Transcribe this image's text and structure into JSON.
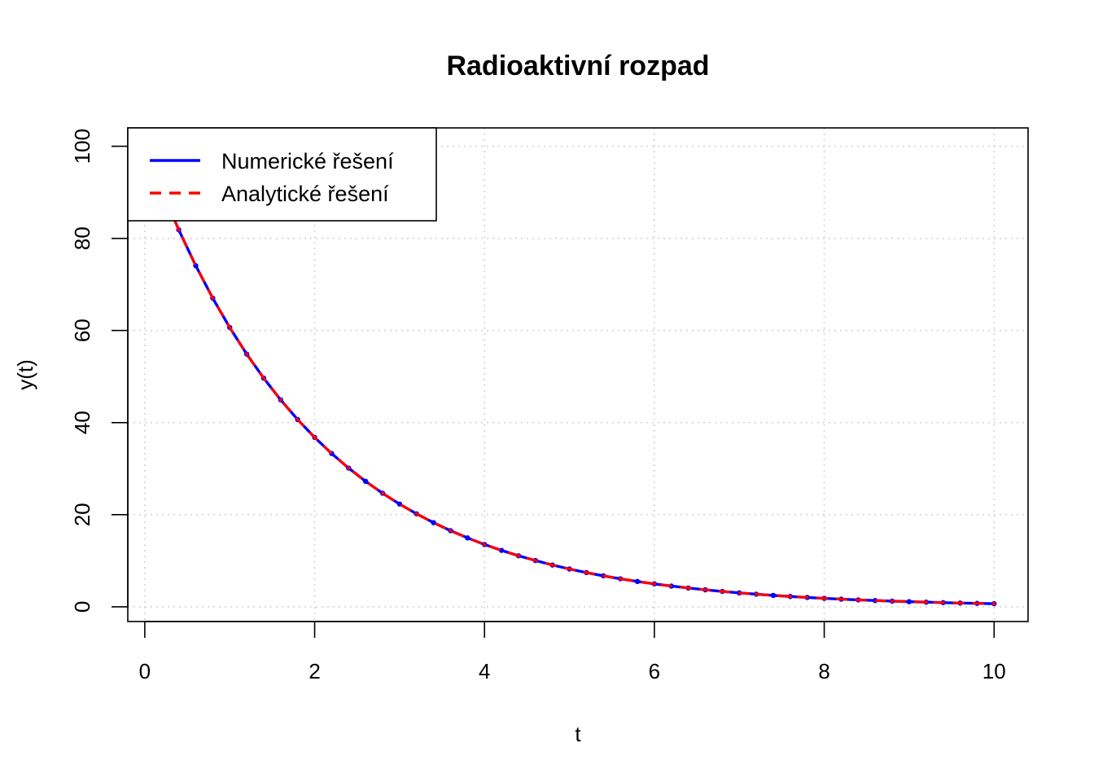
{
  "chart_data": {
    "type": "line",
    "title": "Radioaktivní rozpad",
    "xlabel": "t",
    "ylabel": "y(t)",
    "xlim": [
      -0.2,
      10.4
    ],
    "ylim": [
      -3.2,
      104
    ],
    "xticks": [
      0,
      2,
      4,
      6,
      8,
      10
    ],
    "yticks": [
      0,
      20,
      40,
      60,
      80,
      100
    ],
    "grid": true,
    "legend_position": "top-left",
    "series": [
      {
        "name": "Numerické řešení",
        "color": "#0000ff",
        "style": "solid-with-points",
        "x": [
          0,
          0.2,
          0.4,
          0.6,
          0.8,
          1.0,
          1.2,
          1.4,
          1.6,
          1.8,
          2.0,
          2.2,
          2.4,
          2.6,
          2.8,
          3.0,
          3.2,
          3.4,
          3.6,
          3.8,
          4.0,
          4.2,
          4.4,
          4.6,
          4.8,
          5.0,
          5.2,
          5.4,
          5.6,
          5.8,
          6.0,
          6.2,
          6.4,
          6.6,
          6.8,
          7.0,
          7.2,
          7.4,
          7.6,
          7.8,
          8.0,
          8.2,
          8.4,
          8.6,
          8.8,
          9.0,
          9.2,
          9.4,
          9.6,
          9.8,
          10.0
        ],
        "y": [
          100,
          90.48,
          81.87,
          74.08,
          67.03,
          60.65,
          54.88,
          49.66,
          44.93,
          40.66,
          36.79,
          33.29,
          30.12,
          27.25,
          24.66,
          22.31,
          20.19,
          18.27,
          16.53,
          14.96,
          13.53,
          12.25,
          11.08,
          10.05,
          9.07,
          8.21,
          7.43,
          6.72,
          6.08,
          5.5,
          4.98,
          4.5,
          4.08,
          3.69,
          3.34,
          3.02,
          2.73,
          2.47,
          2.24,
          2.03,
          1.83,
          1.66,
          1.5,
          1.36,
          1.23,
          1.11,
          1.01,
          0.91,
          0.82,
          0.74,
          0.67
        ]
      },
      {
        "name": "Analytické řešení",
        "color": "#ff0000",
        "style": "dashed",
        "x": [
          0,
          0.2,
          0.4,
          0.6,
          0.8,
          1.0,
          1.2,
          1.4,
          1.6,
          1.8,
          2.0,
          2.2,
          2.4,
          2.6,
          2.8,
          3.0,
          3.2,
          3.4,
          3.6,
          3.8,
          4.0,
          4.2,
          4.4,
          4.6,
          4.8,
          5.0,
          5.2,
          5.4,
          5.6,
          5.8,
          6.0,
          6.2,
          6.4,
          6.6,
          6.8,
          7.0,
          7.2,
          7.4,
          7.6,
          7.8,
          8.0,
          8.2,
          8.4,
          8.6,
          8.8,
          9.0,
          9.2,
          9.4,
          9.6,
          9.8,
          10.0
        ],
        "y": [
          100,
          90.48,
          81.87,
          74.08,
          67.03,
          60.65,
          54.88,
          49.66,
          44.93,
          40.66,
          36.79,
          33.29,
          30.12,
          27.25,
          24.66,
          22.31,
          20.19,
          18.27,
          16.53,
          14.96,
          13.53,
          12.25,
          11.08,
          10.05,
          9.07,
          8.21,
          7.43,
          6.72,
          6.08,
          5.5,
          4.98,
          4.5,
          4.08,
          3.69,
          3.34,
          3.02,
          2.73,
          2.47,
          2.24,
          2.03,
          1.83,
          1.66,
          1.5,
          1.36,
          1.23,
          1.11,
          1.01,
          0.91,
          0.82,
          0.74,
          0.67
        ]
      }
    ]
  }
}
